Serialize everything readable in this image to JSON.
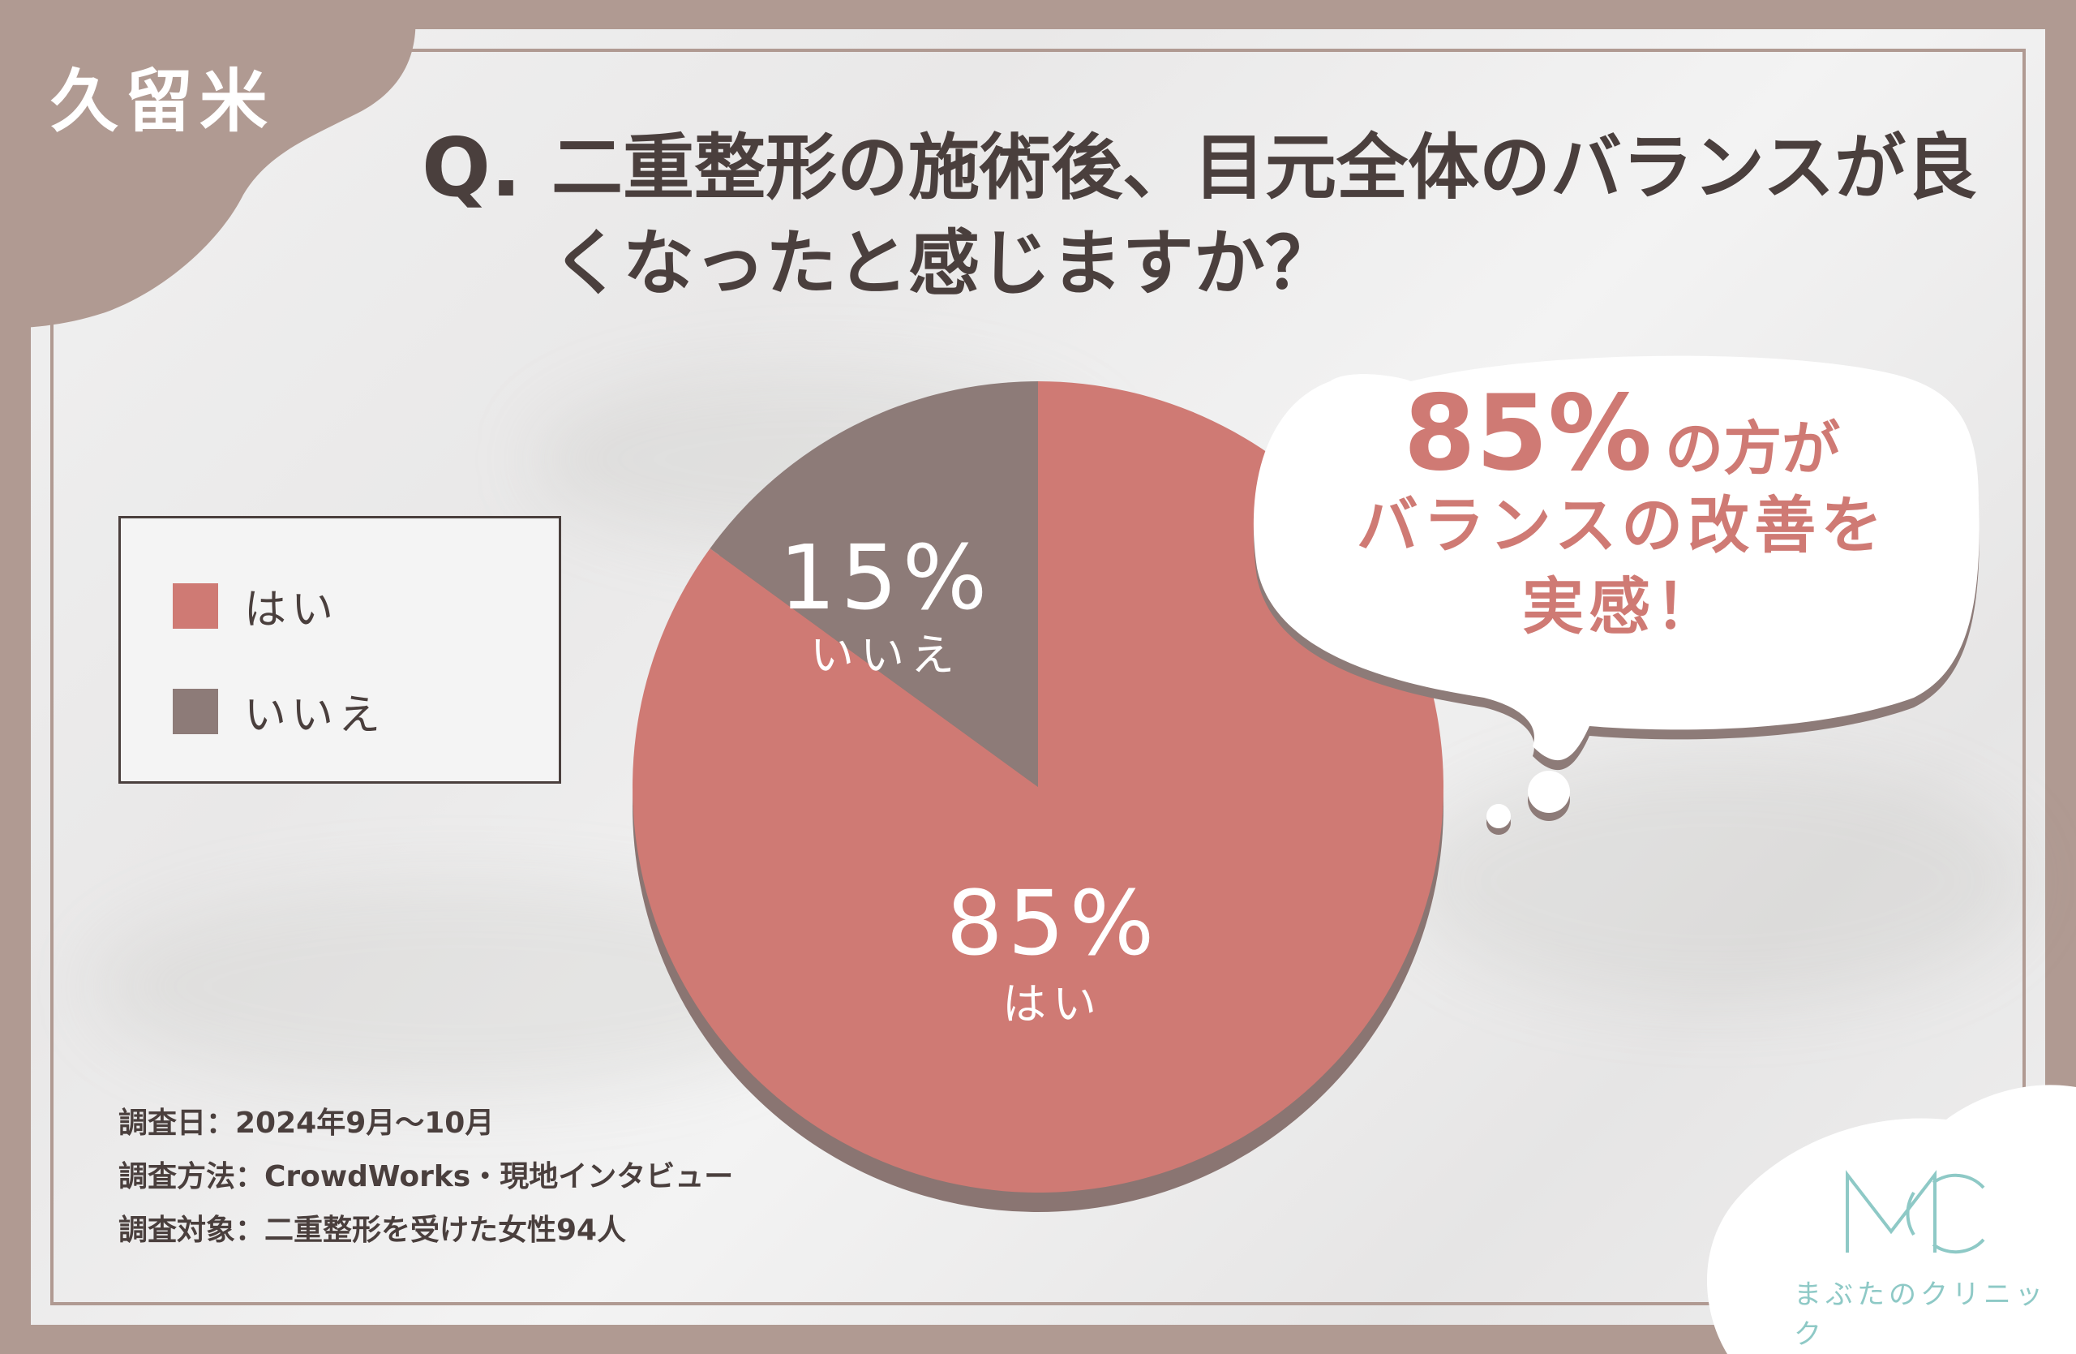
{
  "region_tag": "久留米",
  "question": {
    "mark": "Q.",
    "text": "二重整形の施術後、目元全体のバランスが良くなったと感じますか？"
  },
  "legend": [
    {
      "label": "はい",
      "color": "#cf7a74"
    },
    {
      "label": "いいえ",
      "color": "#8d7b78"
    }
  ],
  "chart_data": {
    "type": "pie",
    "categories": [
      "はい",
      "いいえ"
    ],
    "values": [
      85,
      15
    ],
    "value_labels": [
      "85%",
      "15%"
    ],
    "colors": [
      "#cf7a74",
      "#8d7b78"
    ],
    "start": "12 o'clock",
    "direction": "clockwise",
    "legend_position": "left"
  },
  "callout": {
    "percent": "85%",
    "line1_suffix": "の方が",
    "line2": "バランスの改善を",
    "line3": "実感！"
  },
  "notes": [
    "調査日：2024年9月〜10月",
    "調査方法：CrowdWorks・現地インタビュー",
    "調査対象：二重整形を受けた女性94人"
  ],
  "brand": {
    "monogram": "MC",
    "name": "まぶたのクリニック",
    "color": "#8ec9c6"
  }
}
